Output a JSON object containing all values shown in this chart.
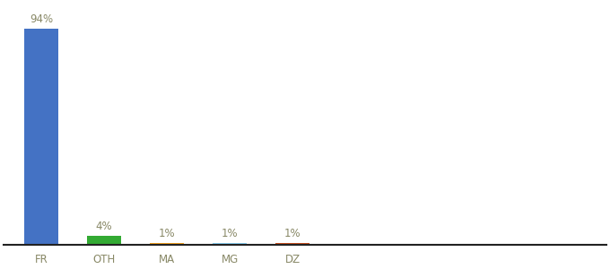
{
  "categories": [
    "FR",
    "OTH",
    "MA",
    "MG",
    "DZ"
  ],
  "values": [
    94,
    4,
    1,
    1,
    1
  ],
  "bar_colors": [
    "#4472c4",
    "#33aa33",
    "#f0a020",
    "#88ccee",
    "#c85020"
  ],
  "labels": [
    "94%",
    "4%",
    "1%",
    "1%",
    "1%"
  ],
  "ylim": [
    0,
    105
  ],
  "background_color": "#ffffff",
  "label_fontsize": 8.5,
  "tick_fontsize": 8.5,
  "bar_width": 0.55,
  "x_positions": [
    0,
    1,
    2,
    3,
    4
  ],
  "xlim": [
    -0.6,
    9.0
  ]
}
